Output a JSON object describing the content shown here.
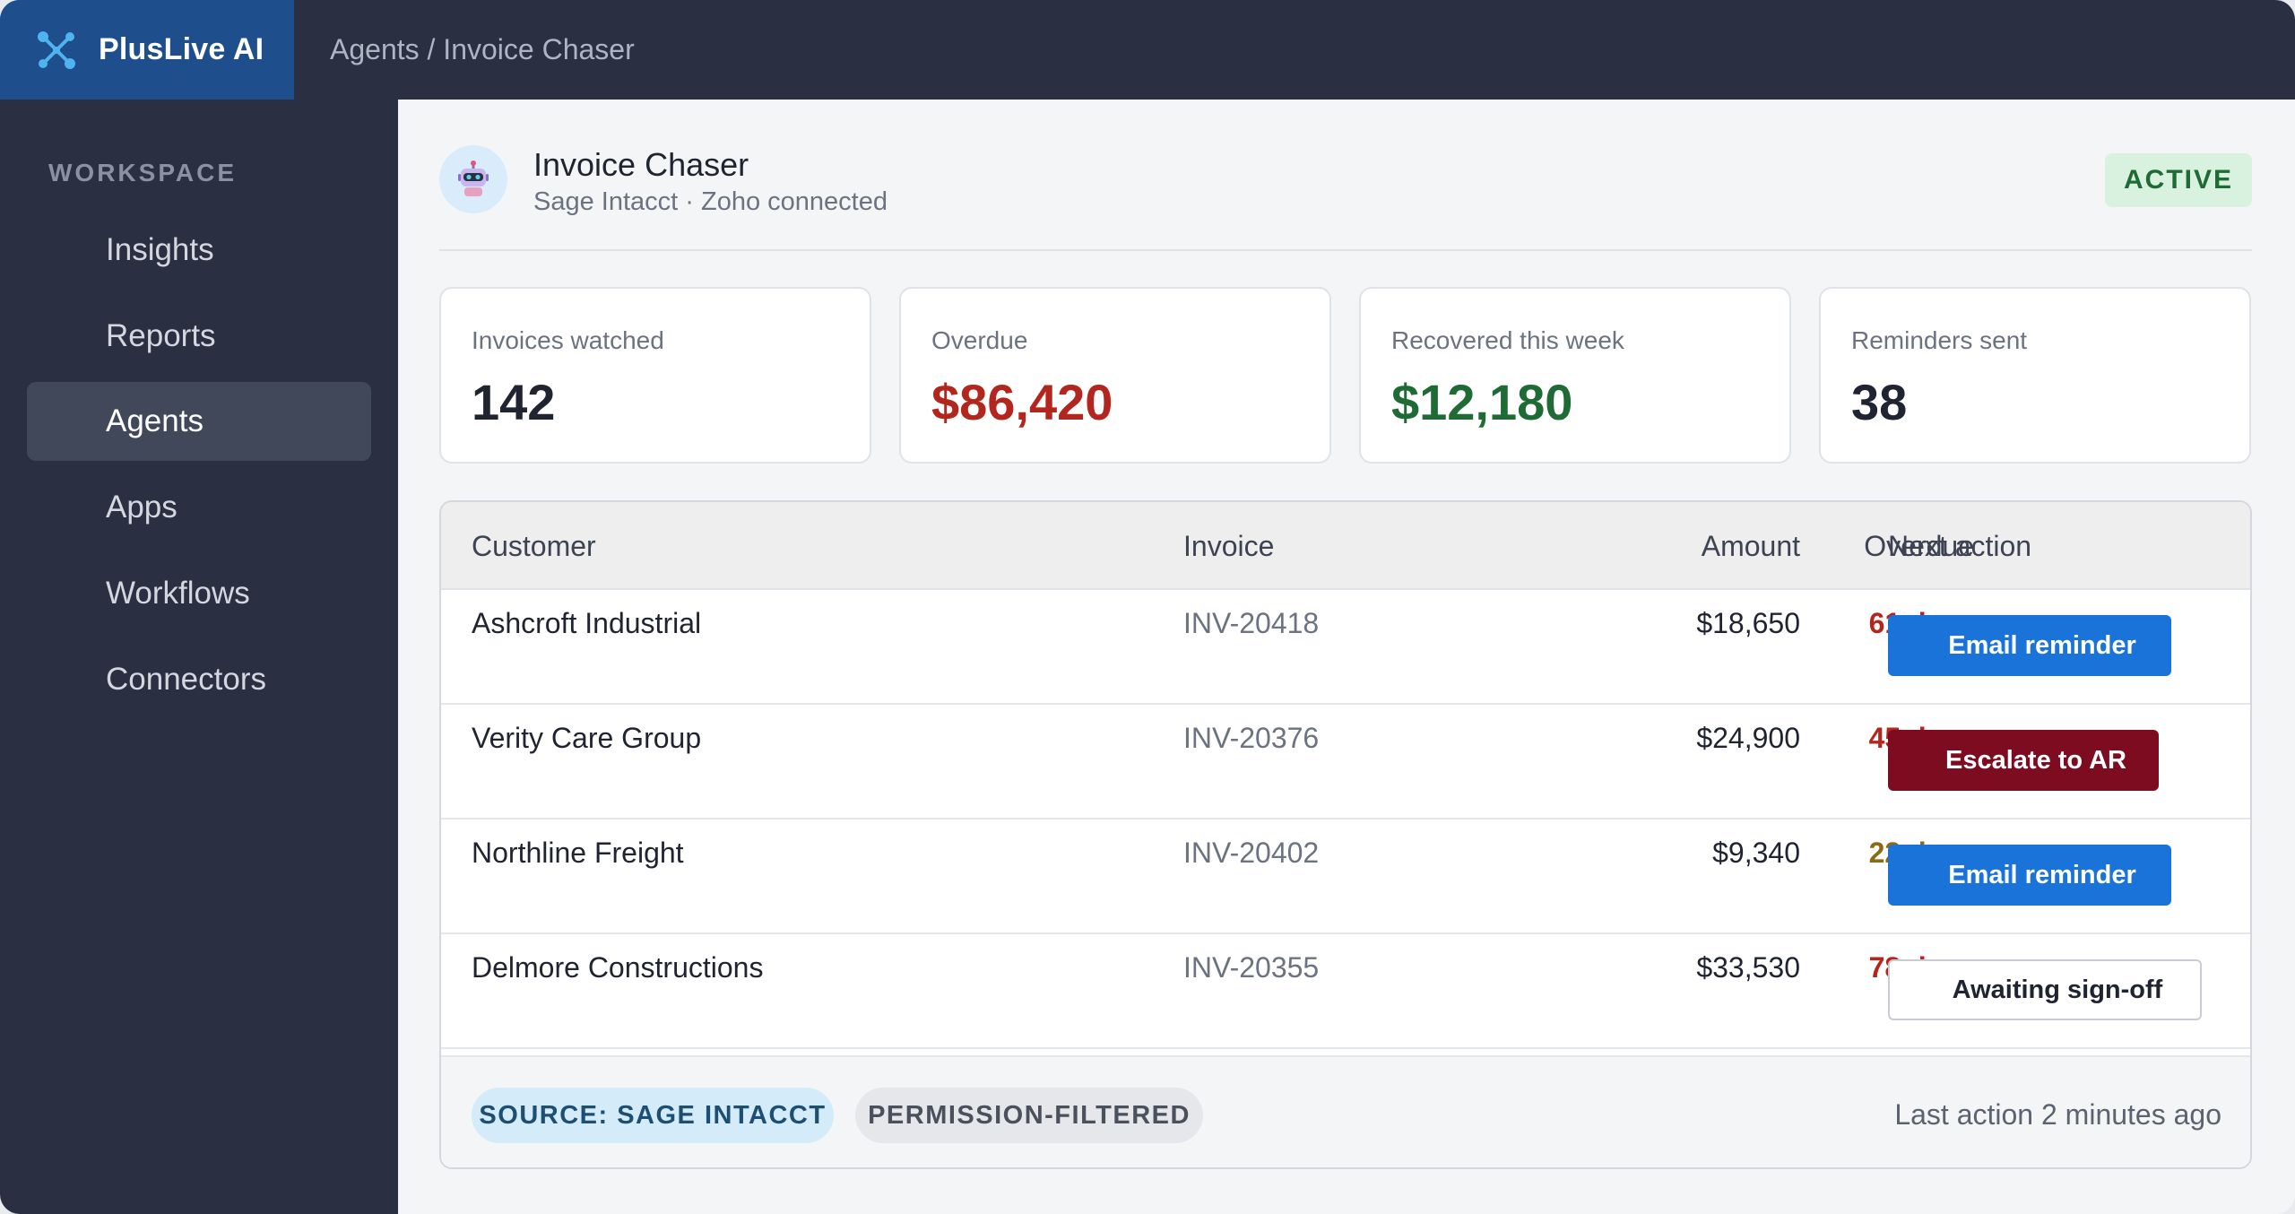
{
  "app": {
    "name": "PlusLive AI",
    "breadcrumb": "Agents / Invoice Chaser",
    "brand_color": "#1e4f8c"
  },
  "sidebar": {
    "heading": "WORKSPACE",
    "items": [
      {
        "label": "Insights",
        "active": false
      },
      {
        "label": "Reports",
        "active": false
      },
      {
        "label": "Agents",
        "active": true
      },
      {
        "label": "Apps",
        "active": false
      },
      {
        "label": "Workflows",
        "active": false
      },
      {
        "label": "Connectors",
        "active": false
      }
    ]
  },
  "agent": {
    "name": "Invoice Chaser",
    "subtitle": "Sage Intacct · Zoho connected",
    "status": "ACTIVE",
    "avatar_icon": "robot-icon"
  },
  "stats": [
    {
      "label": "Invoices watched",
      "value": "142",
      "color": "#1f2430"
    },
    {
      "label": "Overdue",
      "value": "$86,420",
      "color": "#b3261e"
    },
    {
      "label": "Recovered this week",
      "value": "$12,180",
      "color": "#1f6b35"
    },
    {
      "label": "Reminders sent",
      "value": "38",
      "color": "#1f2430"
    }
  ],
  "table": {
    "headers": {
      "customer": "Customer",
      "invoice": "Invoice",
      "amount": "Amount",
      "overdue": "Overdue",
      "next_action": "Next action"
    },
    "rows": [
      {
        "customer": "Ashcroft Industrial",
        "invoice": "INV-20418",
        "amount": "$18,650",
        "overdue": "61 days",
        "overdue_color": "#b3261e",
        "action": "Email reminder",
        "action_style": "primary"
      },
      {
        "customer": "Verity Care Group",
        "invoice": "INV-20376",
        "amount": "$24,900",
        "overdue": "45 days",
        "overdue_color": "#b3261e",
        "action": "Escalate to AR",
        "action_style": "danger"
      },
      {
        "customer": "Northline Freight",
        "invoice": "INV-20402",
        "amount": "$9,340",
        "overdue": "22 days",
        "overdue_color": "#8a6a14",
        "action": "Email reminder",
        "action_style": "primary"
      },
      {
        "customer": "Delmore Constructions",
        "invoice": "INV-20355",
        "amount": "$33,530",
        "overdue": "78 days",
        "overdue_color": "#b3261e",
        "action": "Awaiting sign-off",
        "action_style": "outline"
      }
    ]
  },
  "footer": {
    "source_chip": "SOURCE: SAGE INTACCT",
    "permission_chip": "PERMISSION-FILTERED",
    "last_action": "Last action 2 minutes ago"
  }
}
